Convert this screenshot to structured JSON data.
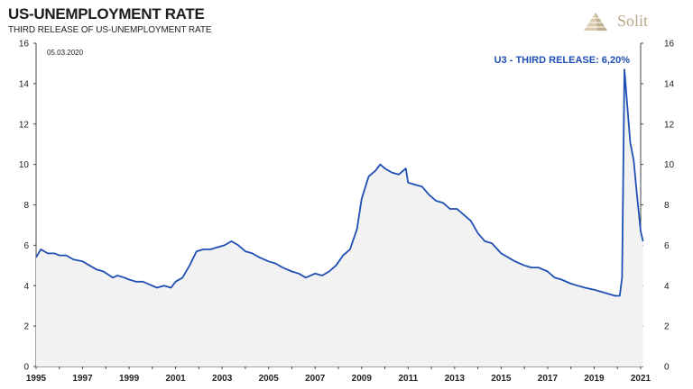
{
  "header": {
    "title": "US-UNEMPLOYMENT RATE",
    "subtitle": "THIRD RELEASE OF US-UNEMPLOYMENT RATE",
    "logo_text": "Solit",
    "date_label": "05.03.2020"
  },
  "chart_data": {
    "type": "area",
    "title": "US-UNEMPLOYMENT RATE",
    "subtitle": "THIRD RELEASE OF US-UNEMPLOYMENT RATE",
    "ylim": [
      0,
      16
    ],
    "y_ticks": [
      0,
      2,
      4,
      6,
      8,
      10,
      12,
      14,
      16
    ],
    "x_ticks": [
      1995,
      1997,
      1999,
      2001,
      2003,
      2005,
      2007,
      2009,
      2011,
      2013,
      2015,
      2017,
      2019,
      2021
    ],
    "xlim": [
      1995,
      2021
    ],
    "grid": false,
    "line_color": "#1f4fb4",
    "fill_color": "#f2f2f2",
    "annotation": "U3 - THIRD RELEASE: 6,20%",
    "series": [
      {
        "x": [
          1995.0,
          1995.2,
          1995.5,
          1995.8,
          1996.0,
          1996.3,
          1996.6,
          1997.0,
          1997.3,
          1997.6,
          1997.9,
          1998.3,
          1998.5,
          1998.8,
          1999.0,
          1999.3,
          1999.6,
          2000.0,
          2000.2,
          2000.5,
          2000.8,
          2001.0,
          2001.3,
          2001.6,
          2001.9,
          2002.2,
          2002.5,
          2002.8,
          2003.1,
          2003.4,
          2003.7,
          2004.0,
          2004.3,
          2004.6,
          2005.0,
          2005.3,
          2005.6,
          2006.0,
          2006.3,
          2006.6,
          2007.0,
          2007.3,
          2007.6,
          2007.9,
          2008.2,
          2008.5,
          2008.8,
          2009.0,
          2009.3,
          2009.6,
          2009.8,
          2010.0,
          2010.3,
          2010.6,
          2010.9,
          2011.0,
          2011.3,
          2011.6,
          2011.9,
          2012.2,
          2012.5,
          2012.8,
          2013.1,
          2013.4,
          2013.7,
          2014.0,
          2014.3,
          2014.6,
          2015.0,
          2015.3,
          2015.6,
          2016.0,
          2016.3,
          2016.6,
          2017.0,
          2017.3,
          2017.6,
          2018.0,
          2018.3,
          2018.6,
          2019.0,
          2019.3,
          2019.6,
          2019.9,
          2020.1,
          2020.2,
          2020.3,
          2020.4,
          2020.55,
          2020.7,
          2020.85,
          2021.0,
          2021.1
        ],
        "y": [
          5.4,
          5.8,
          5.6,
          5.6,
          5.5,
          5.5,
          5.3,
          5.2,
          5.0,
          4.8,
          4.7,
          4.4,
          4.5,
          4.4,
          4.3,
          4.2,
          4.2,
          4.0,
          3.9,
          4.0,
          3.9,
          4.2,
          4.4,
          5.0,
          5.7,
          5.8,
          5.8,
          5.9,
          6.0,
          6.2,
          6.0,
          5.7,
          5.6,
          5.4,
          5.2,
          5.1,
          4.9,
          4.7,
          4.6,
          4.4,
          4.6,
          4.5,
          4.7,
          5.0,
          5.5,
          5.8,
          6.8,
          8.3,
          9.4,
          9.7,
          10.0,
          9.8,
          9.6,
          9.5,
          9.8,
          9.1,
          9.0,
          8.9,
          8.5,
          8.2,
          8.1,
          7.8,
          7.8,
          7.5,
          7.2,
          6.6,
          6.2,
          6.1,
          5.6,
          5.4,
          5.2,
          5.0,
          4.9,
          4.9,
          4.7,
          4.4,
          4.3,
          4.1,
          4.0,
          3.9,
          3.8,
          3.7,
          3.6,
          3.5,
          3.5,
          4.4,
          14.7,
          13.3,
          11.1,
          10.2,
          8.4,
          6.7,
          6.2
        ]
      }
    ]
  }
}
